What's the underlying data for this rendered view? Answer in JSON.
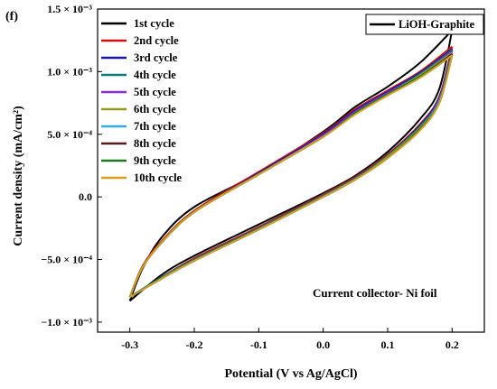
{
  "chart_data": {
    "type": "line",
    "panel_label": "(f)",
    "title": "",
    "xlabel": "Potential (V vs Ag/AgCl)",
    "ylabel": "Current density (mA/cm²)",
    "xlim": [
      -0.35,
      0.25
    ],
    "ylim": [
      -0.00108,
      0.0015
    ],
    "x_ticks": [
      -0.3,
      -0.2,
      -0.1,
      0.0,
      0.1,
      0.2
    ],
    "x_tick_labels": [
      "-0.3",
      "-0.2",
      "-0.1",
      "0.0",
      "0.1",
      "0.2"
    ],
    "y_ticks": [
      -0.001,
      -0.0005,
      0.0,
      0.0005,
      0.001,
      0.0015
    ],
    "y_tick_labels": [
      "−1.0 × 10⁻³",
      "−5.0 × 10⁻⁴",
      "0.0",
      "5.0 × 10⁻⁴",
      "1.0 × 10⁻³",
      "1.5 × 10⁻³"
    ],
    "grid": false,
    "legend_position": "top-left",
    "secondary_legend": {
      "label": "LiOH-Graphite",
      "position": "top-right",
      "color": "#000000"
    },
    "annotation": "Current collector- Ni foil",
    "series": [
      {
        "name": "1st cycle",
        "color": "#000000",
        "anodic": [
          [
            -0.3,
            -0.00083
          ],
          [
            -0.25,
            -0.00062
          ],
          [
            -0.2,
            -0.00047
          ],
          [
            -0.1,
            -0.00022
          ],
          [
            0.0,
            3e-05
          ],
          [
            0.05,
            0.00017
          ],
          [
            0.1,
            0.00036
          ],
          [
            0.15,
            0.00062
          ],
          [
            0.18,
            0.00086
          ],
          [
            0.2,
            0.00133
          ]
        ],
        "cathodic": [
          [
            0.2,
            0.00133
          ],
          [
            0.15,
            0.00107
          ],
          [
            0.1,
            0.00088
          ],
          [
            0.05,
            0.00072
          ],
          [
            0.0,
            0.00052
          ],
          [
            -0.1,
            0.00019
          ],
          [
            -0.2,
            -8e-05
          ],
          [
            -0.25,
            -0.00032
          ],
          [
            -0.28,
            -0.00057
          ],
          [
            -0.3,
            -0.00083
          ]
        ]
      },
      {
        "name": "2nd cycle",
        "color": "#cc1111",
        "anodic": [
          [
            -0.3,
            -0.0008
          ],
          [
            -0.25,
            -0.00064
          ],
          [
            -0.2,
            -0.00049
          ],
          [
            -0.1,
            -0.00024
          ],
          [
            0.0,
            2e-05
          ],
          [
            0.05,
            0.00016
          ],
          [
            0.1,
            0.00034
          ],
          [
            0.15,
            0.00058
          ],
          [
            0.18,
            0.0008
          ],
          [
            0.2,
            0.0012
          ]
        ],
        "cathodic": [
          [
            0.2,
            0.0012
          ],
          [
            0.15,
            0.001
          ],
          [
            0.1,
            0.00085
          ],
          [
            0.05,
            0.0007
          ],
          [
            0.0,
            0.00051
          ],
          [
            -0.1,
            0.0002
          ],
          [
            -0.2,
            -0.00011
          ],
          [
            -0.25,
            -0.00035
          ],
          [
            -0.28,
            -0.00055
          ],
          [
            -0.3,
            -0.0008
          ]
        ]
      },
      {
        "name": "3rd cycle",
        "color": "#1a1aa8",
        "anodic": [
          [
            -0.3,
            -0.0008
          ],
          [
            -0.25,
            -0.00064
          ],
          [
            -0.2,
            -0.0005
          ],
          [
            -0.1,
            -0.00025
          ],
          [
            0.0,
            1e-05
          ],
          [
            0.05,
            0.00015
          ],
          [
            0.1,
            0.00033
          ],
          [
            0.15,
            0.00057
          ],
          [
            0.18,
            0.00079
          ],
          [
            0.2,
            0.00118
          ]
        ],
        "cathodic": [
          [
            0.2,
            0.00118
          ],
          [
            0.15,
            0.00099
          ],
          [
            0.1,
            0.00084
          ],
          [
            0.05,
            0.00069
          ],
          [
            0.0,
            0.0005
          ],
          [
            -0.1,
            0.00019
          ],
          [
            -0.2,
            -0.00012
          ],
          [
            -0.25,
            -0.00036
          ],
          [
            -0.28,
            -0.00056
          ],
          [
            -0.3,
            -0.0008
          ]
        ]
      },
      {
        "name": "4th cycle",
        "color": "#0f7b7b",
        "anodic": [
          [
            -0.3,
            -0.0008
          ],
          [
            -0.25,
            -0.00064
          ],
          [
            -0.2,
            -0.0005
          ],
          [
            -0.1,
            -0.00025
          ],
          [
            0.0,
            1e-05
          ],
          [
            0.05,
            0.00015
          ],
          [
            0.1,
            0.00033
          ],
          [
            0.15,
            0.00056
          ],
          [
            0.18,
            0.00078
          ],
          [
            0.2,
            0.00117
          ]
        ],
        "cathodic": [
          [
            0.2,
            0.00117
          ],
          [
            0.15,
            0.00098
          ],
          [
            0.1,
            0.00083
          ],
          [
            0.05,
            0.00068
          ],
          [
            0.0,
            0.00049
          ],
          [
            -0.1,
            0.00018
          ],
          [
            -0.2,
            -0.00012
          ],
          [
            -0.25,
            -0.00036
          ],
          [
            -0.28,
            -0.00056
          ],
          [
            -0.3,
            -0.0008
          ]
        ]
      },
      {
        "name": "5th cycle",
        "color": "#8a2be2",
        "anodic": [
          [
            -0.3,
            -0.0008
          ],
          [
            -0.25,
            -0.00065
          ],
          [
            -0.2,
            -0.00051
          ],
          [
            -0.1,
            -0.00026
          ],
          [
            0.0,
            0.0
          ],
          [
            0.05,
            0.00014
          ],
          [
            0.1,
            0.00032
          ],
          [
            0.15,
            0.00055
          ],
          [
            0.18,
            0.00077
          ],
          [
            0.2,
            0.00116
          ]
        ],
        "cathodic": [
          [
            0.2,
            0.00116
          ],
          [
            0.15,
            0.00097
          ],
          [
            0.1,
            0.00083
          ],
          [
            0.05,
            0.00068
          ],
          [
            0.0,
            0.00049
          ],
          [
            -0.1,
            0.00018
          ],
          [
            -0.2,
            -0.00012
          ],
          [
            -0.25,
            -0.00036
          ],
          [
            -0.28,
            -0.00056
          ],
          [
            -0.3,
            -0.0008
          ]
        ]
      },
      {
        "name": "6th cycle",
        "color": "#9a9a1a",
        "anodic": [
          [
            -0.3,
            -0.0008
          ],
          [
            -0.25,
            -0.00065
          ],
          [
            -0.2,
            -0.00051
          ],
          [
            -0.1,
            -0.00026
          ],
          [
            0.0,
            0.0
          ],
          [
            0.05,
            0.00014
          ],
          [
            0.1,
            0.00032
          ],
          [
            0.15,
            0.00055
          ],
          [
            0.18,
            0.00076
          ],
          [
            0.2,
            0.00115
          ]
        ],
        "cathodic": [
          [
            0.2,
            0.00115
          ],
          [
            0.15,
            0.00097
          ],
          [
            0.1,
            0.00082
          ],
          [
            0.05,
            0.00067
          ],
          [
            0.0,
            0.00048
          ],
          [
            -0.1,
            0.00018
          ],
          [
            -0.2,
            -0.00012
          ],
          [
            -0.25,
            -0.00036
          ],
          [
            -0.28,
            -0.00056
          ],
          [
            -0.3,
            -0.0008
          ]
        ]
      },
      {
        "name": "7th cycle",
        "color": "#33aaee",
        "anodic": [
          [
            -0.3,
            -0.0008
          ],
          [
            -0.25,
            -0.00065
          ],
          [
            -0.2,
            -0.00051
          ],
          [
            -0.1,
            -0.00026
          ],
          [
            0.0,
            0.0
          ],
          [
            0.05,
            0.00014
          ],
          [
            0.1,
            0.00031
          ],
          [
            0.15,
            0.00054
          ],
          [
            0.18,
            0.00076
          ],
          [
            0.2,
            0.00114
          ]
        ],
        "cathodic": [
          [
            0.2,
            0.00114
          ],
          [
            0.15,
            0.00096
          ],
          [
            0.1,
            0.00082
          ],
          [
            0.05,
            0.00067
          ],
          [
            0.0,
            0.00048
          ],
          [
            -0.1,
            0.00018
          ],
          [
            -0.2,
            -0.00012
          ],
          [
            -0.25,
            -0.00036
          ],
          [
            -0.28,
            -0.00056
          ],
          [
            -0.3,
            -0.0008
          ]
        ]
      },
      {
        "name": "8th cycle",
        "color": "#5a1a1a",
        "anodic": [
          [
            -0.3,
            -0.0008
          ],
          [
            -0.25,
            -0.00065
          ],
          [
            -0.2,
            -0.00051
          ],
          [
            -0.1,
            -0.00026
          ],
          [
            0.0,
            0.0
          ],
          [
            0.05,
            0.00014
          ],
          [
            0.1,
            0.00031
          ],
          [
            0.15,
            0.00054
          ],
          [
            0.18,
            0.00075
          ],
          [
            0.2,
            0.00114
          ]
        ],
        "cathodic": [
          [
            0.2,
            0.00114
          ],
          [
            0.15,
            0.00096
          ],
          [
            0.1,
            0.00082
          ],
          [
            0.05,
            0.00067
          ],
          [
            0.0,
            0.00048
          ],
          [
            -0.1,
            0.00018
          ],
          [
            -0.2,
            -0.00012
          ],
          [
            -0.25,
            -0.00036
          ],
          [
            -0.28,
            -0.00056
          ],
          [
            -0.3,
            -0.0008
          ]
        ]
      },
      {
        "name": "9th cycle",
        "color": "#1e7a1e",
        "anodic": [
          [
            -0.3,
            -0.0008
          ],
          [
            -0.25,
            -0.00065
          ],
          [
            -0.2,
            -0.00051
          ],
          [
            -0.1,
            -0.00026
          ],
          [
            0.0,
            0.0
          ],
          [
            0.05,
            0.00014
          ],
          [
            0.1,
            0.00031
          ],
          [
            0.15,
            0.00054
          ],
          [
            0.18,
            0.00075
          ],
          [
            0.2,
            0.00113
          ]
        ],
        "cathodic": [
          [
            0.2,
            0.00113
          ],
          [
            0.15,
            0.00096
          ],
          [
            0.1,
            0.00082
          ],
          [
            0.05,
            0.00067
          ],
          [
            0.0,
            0.00048
          ],
          [
            -0.1,
            0.00018
          ],
          [
            -0.2,
            -0.00012
          ],
          [
            -0.25,
            -0.00036
          ],
          [
            -0.28,
            -0.00056
          ],
          [
            -0.3,
            -0.0008
          ]
        ]
      },
      {
        "name": "10th cycle",
        "color": "#d4a020",
        "anodic": [
          [
            -0.3,
            -0.0008
          ],
          [
            -0.25,
            -0.00065
          ],
          [
            -0.2,
            -0.00051
          ],
          [
            -0.1,
            -0.00026
          ],
          [
            0.0,
            0.0
          ],
          [
            0.05,
            0.00014
          ],
          [
            0.1,
            0.00031
          ],
          [
            0.15,
            0.00053
          ],
          [
            0.18,
            0.00075
          ],
          [
            0.2,
            0.00113
          ]
        ],
        "cathodic": [
          [
            0.2,
            0.00113
          ],
          [
            0.15,
            0.00095
          ],
          [
            0.1,
            0.00081
          ],
          [
            0.05,
            0.00066
          ],
          [
            0.0,
            0.00048
          ],
          [
            -0.1,
            0.00018
          ],
          [
            -0.2,
            -0.00012
          ],
          [
            -0.25,
            -0.00036
          ],
          [
            -0.28,
            -0.00056
          ],
          [
            -0.3,
            -0.0008
          ]
        ]
      }
    ]
  }
}
